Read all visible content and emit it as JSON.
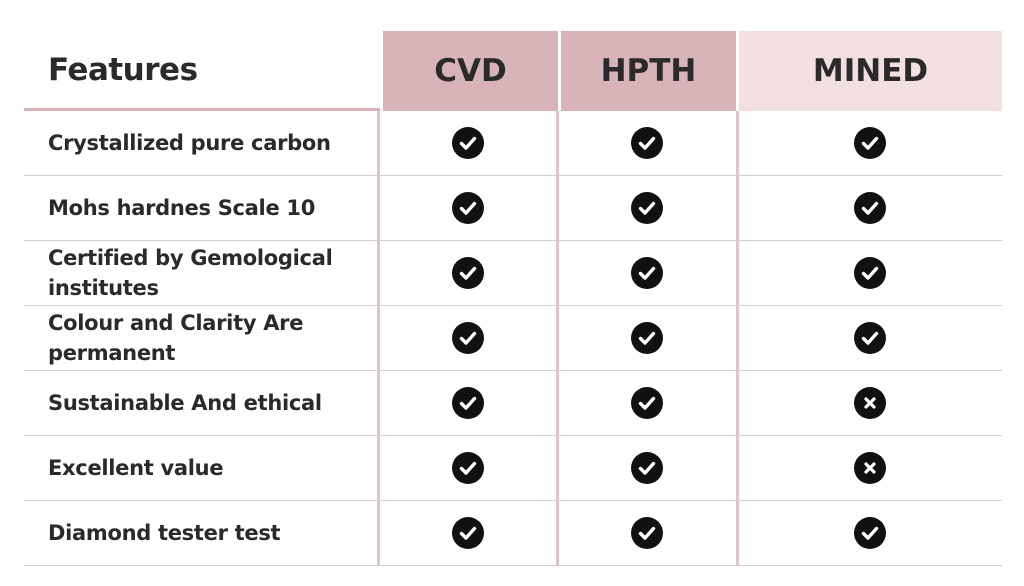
{
  "header": {
    "features_label": "Features",
    "columns": [
      "CVD",
      "HPTH",
      "MINED"
    ]
  },
  "rows": [
    {
      "feature": "Crystallized pure carbon",
      "values": [
        "check",
        "check",
        "check"
      ]
    },
    {
      "feature": "Mohs hardnes Scale 10",
      "values": [
        "check",
        "check",
        "check"
      ]
    },
    {
      "feature": "Certified by Gemological institutes",
      "values": [
        "check",
        "check",
        "check"
      ]
    },
    {
      "feature": "Colour and Clarity Are permanent",
      "values": [
        "check",
        "check",
        "check"
      ]
    },
    {
      "feature": "Sustainable And ethical",
      "values": [
        "check",
        "check",
        "cross"
      ]
    },
    {
      "feature": "Excellent value",
      "values": [
        "check",
        "check",
        "cross"
      ]
    },
    {
      "feature": "Diamond tester test",
      "values": [
        "check",
        "check",
        "check"
      ]
    }
  ],
  "colors": {
    "header_cvd_bg": "#d8b4b9",
    "header_hpth_bg": "#d8b4b9",
    "header_mined_bg": "#f2e0e1",
    "icon_fill": "#111111"
  }
}
